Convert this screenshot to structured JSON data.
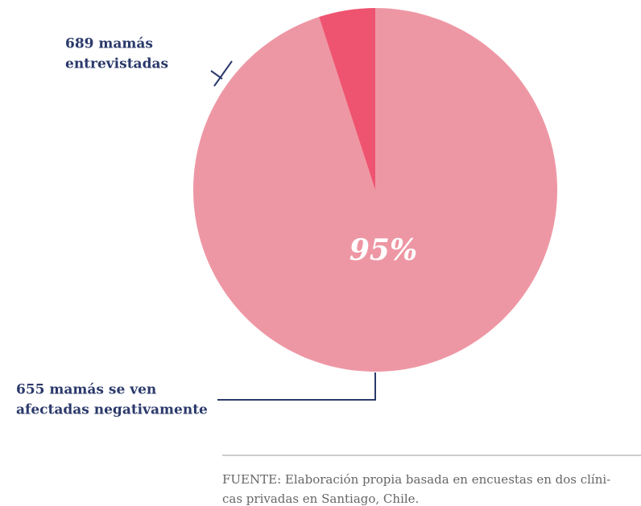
{
  "chart_data": {
    "type": "pie",
    "categories": [
      null,
      null
    ],
    "values": [
      95,
      5
    ],
    "value_labels": [
      "95%",
      null
    ],
    "colors": [
      "#ee97a4",
      "#ee5470"
    ],
    "annotations": [
      [
        "689 mamás",
        "entrevistadas"
      ],
      [
        "655 mamás se ven",
        "afectadas negativamente"
      ]
    ]
  },
  "source": [
    "FUENTE: Elaboración propia basada en encuestas en dos clíni-",
    "cas privadas en Santiago, Chile."
  ]
}
